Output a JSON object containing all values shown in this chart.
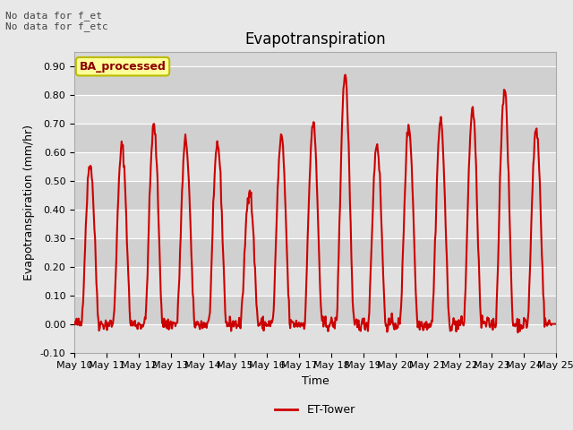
{
  "title": "Evapotranspiration",
  "ylabel": "Evapotranspiration (mm/hr)",
  "xlabel": "Time",
  "ylim": [
    -0.1,
    0.95
  ],
  "yticks": [
    -0.1,
    0.0,
    0.1,
    0.2,
    0.3,
    0.4,
    0.5,
    0.6,
    0.7,
    0.8,
    0.9
  ],
  "line_color": "#cc0000",
  "line_width": 1.5,
  "bg_color": "#e8e8e8",
  "plot_bg_color": "#d8d8d8",
  "annotation_top_left": "No data for f_et\nNo data for f_etc",
  "legend_label": "ET-Tower",
  "box_label": "BA_processed",
  "box_facecolor": "#ffff99",
  "box_edgecolor": "#bbbb00",
  "grid_color": "#ffffff",
  "xtick_labels": [
    "May 10",
    "May 11",
    "May 12",
    "May 13",
    "May 14",
    "May 15",
    "May 16",
    "May 17",
    "May 18",
    "May 19",
    "May 20",
    "May 21",
    "May 22",
    "May 23",
    "May 24",
    "May 25"
  ],
  "peak_vals": [
    0.56,
    0.62,
    0.69,
    0.64,
    0.63,
    0.47,
    0.65,
    0.7,
    0.87,
    0.63,
    0.69,
    0.71,
    0.75,
    0.82,
    0.68
  ],
  "title_fontsize": 12,
  "axis_fontsize": 9,
  "tick_fontsize": 8
}
